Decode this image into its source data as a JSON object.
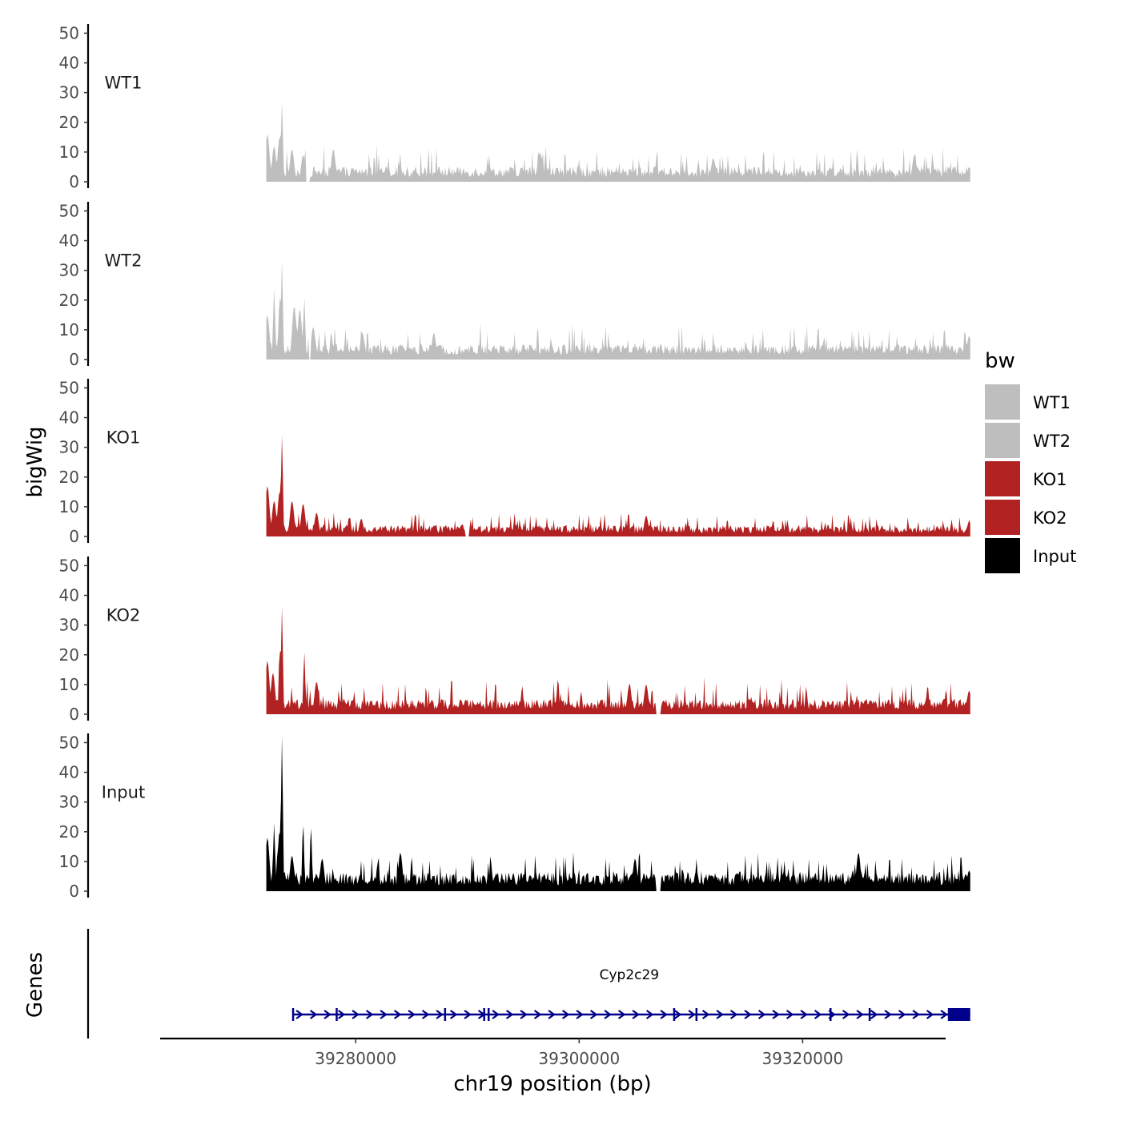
{
  "chart_data": {
    "type": "area",
    "title": "",
    "xlabel": "chr19 position (bp)",
    "ylabel": "bigWig",
    "genes_label": "Genes",
    "xlim": [
      39262500,
      39332800
    ],
    "x_ticks": [
      39280000,
      39300000,
      39320000
    ],
    "x_tick_labels": [
      "39280000",
      "39300000",
      "39320000"
    ],
    "ylim": [
      0,
      52
    ],
    "y_ticks": [
      0,
      10,
      20,
      30,
      40,
      50
    ],
    "y_tick_labels": [
      "0",
      "10",
      "20",
      "30",
      "40",
      "50"
    ],
    "data_range": [
      39272000,
      39335000
    ],
    "legend": {
      "title": "bw",
      "position": "right",
      "entries": [
        {
          "label": "WT1",
          "color": "#bebebe"
        },
        {
          "label": "WT2",
          "color": "#bebebe"
        },
        {
          "label": "KO1",
          "color": "#b22222"
        },
        {
          "label": "KO2",
          "color": "#b22222"
        },
        {
          "label": "Input",
          "color": "#000000"
        }
      ]
    },
    "series": [
      {
        "name": "WT1",
        "color": "#bebebe",
        "peaks": [
          {
            "x": 39272100,
            "y": 16
          },
          {
            "x": 39272700,
            "y": 12
          },
          {
            "x": 39273200,
            "y": 15
          },
          {
            "x": 39273400,
            "y": 27
          },
          {
            "x": 39274300,
            "y": 11
          },
          {
            "x": 39275300,
            "y": 9
          },
          {
            "x": 39278000,
            "y": 11
          },
          {
            "x": 39296500,
            "y": 10
          },
          {
            "x": 39312000,
            "y": 8
          },
          {
            "x": 39330000,
            "y": 9
          },
          {
            "x": 39334900,
            "y": 5
          }
        ],
        "baseline": 4,
        "noise": 3,
        "gap": [
          39275500,
          39275900
        ]
      },
      {
        "name": "WT2",
        "color": "#bebebe",
        "peaks": [
          {
            "x": 39272100,
            "y": 15
          },
          {
            "x": 39272700,
            "y": 24
          },
          {
            "x": 39273200,
            "y": 22
          },
          {
            "x": 39273400,
            "y": 33
          },
          {
            "x": 39274500,
            "y": 18
          },
          {
            "x": 39275000,
            "y": 17
          },
          {
            "x": 39275400,
            "y": 21
          },
          {
            "x": 39276200,
            "y": 11
          },
          {
            "x": 39280600,
            "y": 9
          },
          {
            "x": 39287000,
            "y": 9
          },
          {
            "x": 39334900,
            "y": 8
          }
        ],
        "baseline": 4,
        "noise": 3,
        "gap": [
          39275800,
          39276000
        ]
      },
      {
        "name": "KO1",
        "color": "#b22222",
        "peaks": [
          {
            "x": 39272100,
            "y": 17
          },
          {
            "x": 39272700,
            "y": 12
          },
          {
            "x": 39273200,
            "y": 15
          },
          {
            "x": 39273400,
            "y": 34
          },
          {
            "x": 39274300,
            "y": 12
          },
          {
            "x": 39275300,
            "y": 11
          },
          {
            "x": 39276500,
            "y": 8
          },
          {
            "x": 39280500,
            "y": 6
          },
          {
            "x": 39306000,
            "y": 7
          },
          {
            "x": 39334900,
            "y": 5
          }
        ],
        "baseline": 3,
        "noise": 2,
        "gap": [
          39289800,
          39290200
        ]
      },
      {
        "name": "KO2",
        "color": "#b22222",
        "peaks": [
          {
            "x": 39272100,
            "y": 18
          },
          {
            "x": 39272600,
            "y": 14
          },
          {
            "x": 39273200,
            "y": 22
          },
          {
            "x": 39273400,
            "y": 36
          },
          {
            "x": 39275400,
            "y": 21
          },
          {
            "x": 39276500,
            "y": 11
          },
          {
            "x": 39304500,
            "y": 10
          },
          {
            "x": 39306000,
            "y": 10
          },
          {
            "x": 39334900,
            "y": 8
          }
        ],
        "baseline": 4,
        "noise": 3,
        "gap": [
          39306900,
          39307300
        ]
      },
      {
        "name": "Input",
        "color": "#000000",
        "peaks": [
          {
            "x": 39272100,
            "y": 18
          },
          {
            "x": 39272700,
            "y": 23
          },
          {
            "x": 39273200,
            "y": 20
          },
          {
            "x": 39273400,
            "y": 52
          },
          {
            "x": 39274300,
            "y": 12
          },
          {
            "x": 39275300,
            "y": 23
          },
          {
            "x": 39276000,
            "y": 22
          },
          {
            "x": 39277000,
            "y": 11
          },
          {
            "x": 39284000,
            "y": 13
          },
          {
            "x": 39305000,
            "y": 11
          },
          {
            "x": 39325000,
            "y": 13
          },
          {
            "x": 39334900,
            "y": 7
          }
        ],
        "baseline": 5,
        "noise": 3,
        "gap": [
          39306900,
          39307300
        ]
      }
    ],
    "gene": {
      "name": "Cyp2c29",
      "strand": "+",
      "color": "#00008b",
      "start": 39274400,
      "end": 39335000,
      "exons": [
        39274400,
        39278300,
        39288000,
        39291500,
        39291900,
        39308500,
        39310500,
        39322500,
        39326000
      ],
      "last_exon": [
        39333000,
        39335000
      ]
    }
  }
}
